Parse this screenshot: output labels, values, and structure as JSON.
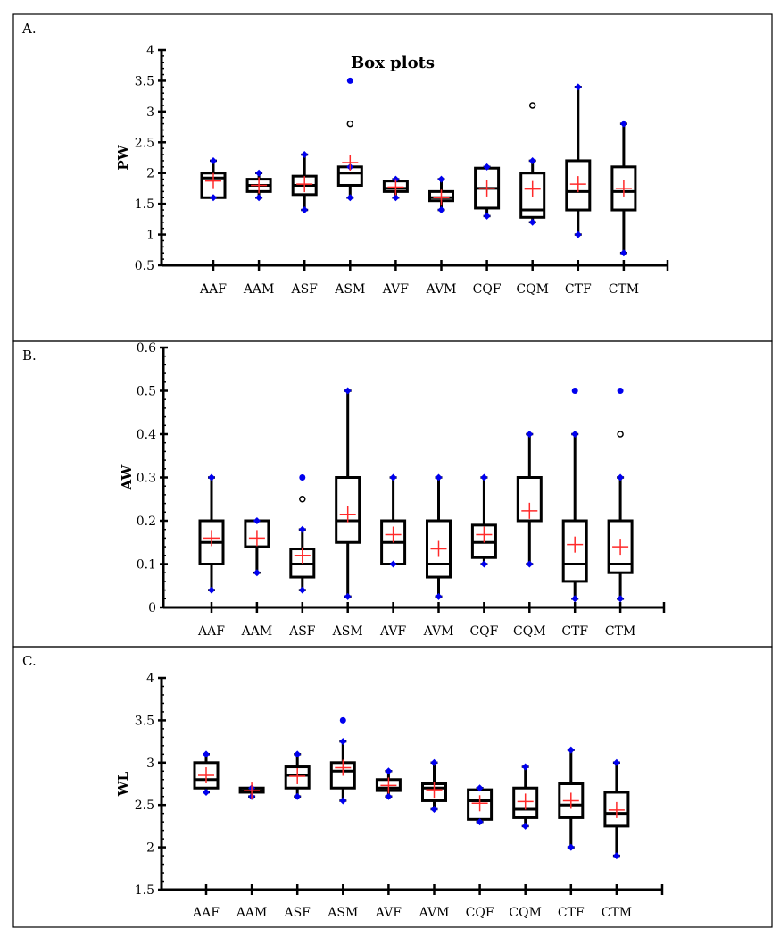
{
  "chart_data": [
    {
      "type": "box",
      "panel_label": "A.",
      "title": "Box plots",
      "xlabel": "",
      "ylabel": "PW",
      "ylim": [
        0.5,
        4
      ],
      "yticks": [
        "0.5",
        "1",
        "1.5",
        "2",
        "2.5",
        "3",
        "3.5",
        "4"
      ],
      "ytick_values": [
        0.5,
        1,
        1.5,
        2,
        2.5,
        3,
        3.5,
        4
      ],
      "categories": [
        "AAF",
        "AAM",
        "ASF",
        "ASM",
        "AVF",
        "AVM",
        "CQF",
        "CQM",
        "CTF",
        "CTM"
      ],
      "boxes": [
        {
          "min": 1.6,
          "q1": 1.6,
          "median": 1.92,
          "q3": 2.0,
          "max": 2.2,
          "mean": 1.87,
          "outliers": [],
          "extremes": []
        },
        {
          "min": 1.6,
          "q1": 1.7,
          "median": 1.8,
          "q3": 1.9,
          "max": 2.0,
          "mean": 1.8,
          "outliers": [],
          "extremes": []
        },
        {
          "min": 1.4,
          "q1": 1.65,
          "median": 1.8,
          "q3": 1.95,
          "max": 2.3,
          "mean": 1.82,
          "outliers": [],
          "extremes": []
        },
        {
          "min": 1.6,
          "q1": 1.8,
          "median": 2.0,
          "q3": 2.1,
          "max": 2.1,
          "mean": 2.17,
          "outliers": [
            2.8
          ],
          "extremes": [
            3.5
          ]
        },
        {
          "min": 1.6,
          "q1": 1.7,
          "median": 1.75,
          "q3": 1.87,
          "max": 1.9,
          "mean": 1.77,
          "outliers": [],
          "extremes": []
        },
        {
          "min": 1.4,
          "q1": 1.55,
          "median": 1.6,
          "q3": 1.7,
          "max": 1.9,
          "mean": 1.6,
          "outliers": [],
          "extremes": []
        },
        {
          "min": 1.3,
          "q1": 1.43,
          "median": 1.75,
          "q3": 2.08,
          "max": 2.1,
          "mean": 1.75,
          "outliers": [],
          "extremes": []
        },
        {
          "min": 1.2,
          "q1": 1.28,
          "median": 1.4,
          "q3": 2.0,
          "max": 2.2,
          "mean": 1.74,
          "outliers": [
            3.1
          ],
          "extremes": []
        },
        {
          "min": 1.0,
          "q1": 1.4,
          "median": 1.7,
          "q3": 2.2,
          "max": 3.4,
          "mean": 1.82,
          "outliers": [],
          "extremes": []
        },
        {
          "min": 0.7,
          "q1": 1.4,
          "median": 1.7,
          "q3": 2.1,
          "max": 2.8,
          "mean": 1.75,
          "outliers": [],
          "extremes": []
        }
      ]
    },
    {
      "type": "box",
      "panel_label": "B.",
      "title": "",
      "xlabel": "",
      "ylabel": "AW",
      "ylim": [
        0,
        0.6
      ],
      "yticks": [
        "0",
        "0.1",
        "0.2",
        "0.3",
        "0.4",
        "0.5",
        "0.6"
      ],
      "ytick_values": [
        0,
        0.1,
        0.2,
        0.3,
        0.4,
        0.5,
        0.6
      ],
      "categories": [
        "AAF",
        "AAM",
        "ASF",
        "ASM",
        "AVF",
        "AVM",
        "CQF",
        "CQM",
        "CTF",
        "CTM"
      ],
      "boxes": [
        {
          "min": 0.04,
          "q1": 0.1,
          "median": 0.15,
          "q3": 0.2,
          "max": 0.3,
          "mean": 0.16,
          "outliers": [],
          "extremes": []
        },
        {
          "min": 0.08,
          "q1": 0.14,
          "median": 0.2,
          "q3": 0.2,
          "max": 0.2,
          "mean": 0.16,
          "outliers": [],
          "extremes": []
        },
        {
          "min": 0.04,
          "q1": 0.07,
          "median": 0.1,
          "q3": 0.135,
          "max": 0.18,
          "mean": 0.12,
          "outliers": [
            0.25
          ],
          "extremes": [
            0.3
          ]
        },
        {
          "min": 0.025,
          "q1": 0.15,
          "median": 0.2,
          "q3": 0.3,
          "max": 0.5,
          "mean": 0.215,
          "outliers": [],
          "extremes": []
        },
        {
          "min": 0.1,
          "q1": 0.1,
          "median": 0.15,
          "q3": 0.2,
          "max": 0.3,
          "mean": 0.168,
          "outliers": [],
          "extremes": []
        },
        {
          "min": 0.025,
          "q1": 0.07,
          "median": 0.1,
          "q3": 0.2,
          "max": 0.3,
          "mean": 0.135,
          "outliers": [],
          "extremes": []
        },
        {
          "min": 0.1,
          "q1": 0.115,
          "median": 0.15,
          "q3": 0.19,
          "max": 0.3,
          "mean": 0.168,
          "outliers": [],
          "extremes": []
        },
        {
          "min": 0.1,
          "q1": 0.2,
          "median": 0.2,
          "q3": 0.3,
          "max": 0.4,
          "mean": 0.223,
          "outliers": [],
          "extremes": []
        },
        {
          "min": 0.02,
          "q1": 0.06,
          "median": 0.1,
          "q3": 0.2,
          "max": 0.4,
          "mean": 0.145,
          "outliers": [],
          "extremes": [
            0.5
          ]
        },
        {
          "min": 0.02,
          "q1": 0.08,
          "median": 0.1,
          "q3": 0.2,
          "max": 0.3,
          "mean": 0.14,
          "outliers": [
            0.4
          ],
          "extremes": [
            0.5
          ]
        }
      ]
    },
    {
      "type": "box",
      "panel_label": "C.",
      "title": "",
      "xlabel": "",
      "ylabel": "WL",
      "ylim": [
        1.5,
        4
      ],
      "yticks": [
        "1.5",
        "2",
        "2.5",
        "3",
        "3.5",
        "4"
      ],
      "ytick_values": [
        1.5,
        2,
        2.5,
        3,
        3.5,
        4
      ],
      "categories": [
        "AAF",
        "AAM",
        "ASF",
        "ASM",
        "AVF",
        "AVM",
        "CQF",
        "CQM",
        "CTF",
        "CTM"
      ],
      "boxes": [
        {
          "min": 2.65,
          "q1": 2.7,
          "median": 2.8,
          "q3": 3.0,
          "max": 3.1,
          "mean": 2.85,
          "outliers": [],
          "extremes": []
        },
        {
          "min": 2.6,
          "q1": 2.65,
          "median": 2.67,
          "q3": 2.7,
          "max": 2.7,
          "mean": 2.67,
          "outliers": [],
          "extremes": []
        },
        {
          "min": 2.6,
          "q1": 2.7,
          "median": 2.85,
          "q3": 2.95,
          "max": 3.1,
          "mean": 2.84,
          "outliers": [],
          "extremes": []
        },
        {
          "min": 2.55,
          "q1": 2.7,
          "median": 2.9,
          "q3": 3.0,
          "max": 3.25,
          "mean": 2.94,
          "outliers": [],
          "extremes": [
            3.5
          ]
        },
        {
          "min": 2.6,
          "q1": 2.67,
          "median": 2.7,
          "q3": 2.8,
          "max": 2.9,
          "mean": 2.73,
          "outliers": [],
          "extremes": []
        },
        {
          "min": 2.45,
          "q1": 2.55,
          "median": 2.7,
          "q3": 2.75,
          "max": 3.0,
          "mean": 2.68,
          "outliers": [],
          "extremes": []
        },
        {
          "min": 2.3,
          "q1": 2.33,
          "median": 2.55,
          "q3": 2.68,
          "max": 2.7,
          "mean": 2.52,
          "outliers": [],
          "extremes": []
        },
        {
          "min": 2.25,
          "q1": 2.35,
          "median": 2.45,
          "q3": 2.7,
          "max": 2.95,
          "mean": 2.54,
          "outliers": [],
          "extremes": []
        },
        {
          "min": 2.0,
          "q1": 2.35,
          "median": 2.5,
          "q3": 2.75,
          "max": 3.15,
          "mean": 2.55,
          "outliers": [],
          "extremes": []
        },
        {
          "min": 1.9,
          "q1": 2.25,
          "median": 2.4,
          "q3": 2.65,
          "max": 3.0,
          "mean": 2.44,
          "outliers": [],
          "extremes": []
        }
      ]
    }
  ],
  "colors": {
    "box": "#000000",
    "whisker_marker": "#0000ee",
    "mean_marker": "#ff2a2a",
    "outlier_open": "#000000",
    "extreme": "#0000ee"
  }
}
